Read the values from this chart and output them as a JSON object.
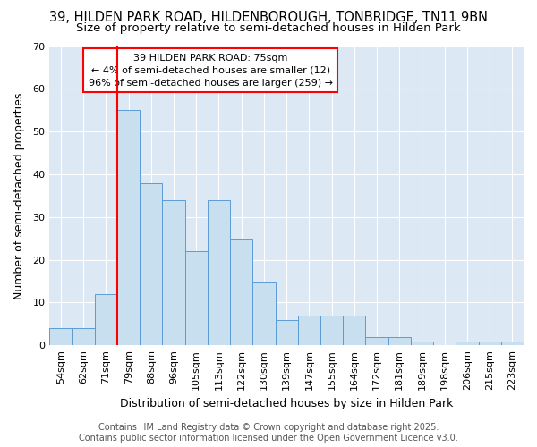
{
  "title1": "39, HILDEN PARK ROAD, HILDENBOROUGH, TONBRIDGE, TN11 9BN",
  "title2": "Size of property relative to semi-detached houses in Hilden Park",
  "xlabel": "Distribution of semi-detached houses by size in Hilden Park",
  "ylabel": "Number of semi-detached properties",
  "categories": [
    "54sqm",
    "62sqm",
    "71sqm",
    "79sqm",
    "88sqm",
    "96sqm",
    "105sqm",
    "113sqm",
    "122sqm",
    "130sqm",
    "139sqm",
    "147sqm",
    "155sqm",
    "164sqm",
    "172sqm",
    "181sqm",
    "189sqm",
    "198sqm",
    "206sqm",
    "215sqm",
    "223sqm"
  ],
  "values": [
    4,
    4,
    12,
    55,
    38,
    34,
    22,
    34,
    25,
    15,
    6,
    7,
    7,
    7,
    2,
    2,
    1,
    0,
    1,
    1,
    1
  ],
  "bar_color": "#c8dff0",
  "bar_edge_color": "#5b9bd5",
  "bar_width": 1.0,
  "ylim": [
    0,
    70
  ],
  "yticks": [
    0,
    10,
    20,
    30,
    40,
    50,
    60,
    70
  ],
  "red_line_x": 2.5,
  "annotation_title": "39 HILDEN PARK ROAD: 75sqm",
  "annotation_line1": "← 4% of semi-detached houses are smaller (12)",
  "annotation_line2": "96% of semi-detached houses are larger (259) →",
  "footer1": "Contains HM Land Registry data © Crown copyright and database right 2025.",
  "footer2": "Contains public sector information licensed under the Open Government Licence v3.0.",
  "fig_bg_color": "#ffffff",
  "plot_bg_color": "#dce9f5",
  "grid_color": "#ffffff",
  "title1_fontsize": 10.5,
  "title2_fontsize": 9.5,
  "axis_label_fontsize": 9,
  "tick_fontsize": 8,
  "footer_fontsize": 7,
  "annotation_fontsize": 8
}
